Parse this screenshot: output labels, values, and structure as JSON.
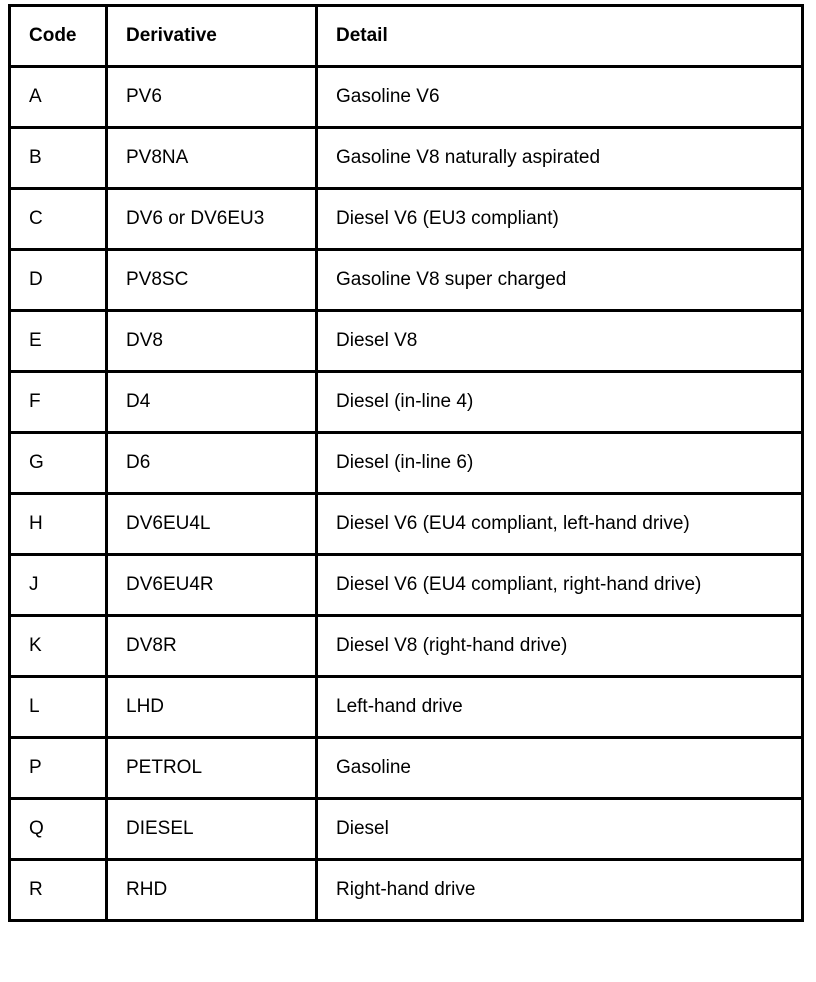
{
  "headers": [
    "Code",
    "Derivative",
    "Detail"
  ],
  "rows": [
    [
      "A",
      "PV6",
      "Gasoline V6"
    ],
    [
      "B",
      "PV8NA",
      "Gasoline V8 naturally aspirated"
    ],
    [
      "C",
      "DV6 or DV6EU3",
      "Diesel V6 (EU3 compliant)"
    ],
    [
      "D",
      "PV8SC",
      "Gasoline V8 super charged"
    ],
    [
      "E",
      "DV8",
      "Diesel V8"
    ],
    [
      "F",
      "D4",
      "Diesel (in-line 4)"
    ],
    [
      "G",
      "D6",
      "Diesel (in-line 6)"
    ],
    [
      "H",
      "DV6EU4L",
      "Diesel V6 (EU4 compliant, left-hand drive)"
    ],
    [
      "J",
      "DV6EU4R",
      "Diesel V6 (EU4 compliant, right-hand drive)"
    ],
    [
      "K",
      "DV8R",
      "Diesel V8 (right-hand drive)"
    ],
    [
      "L",
      "LHD",
      "Left-hand drive"
    ],
    [
      "P",
      "PETROL",
      "Gasoline"
    ],
    [
      "Q",
      "DIESEL",
      "Diesel"
    ],
    [
      "R",
      "RHD",
      "Right-hand drive"
    ]
  ]
}
